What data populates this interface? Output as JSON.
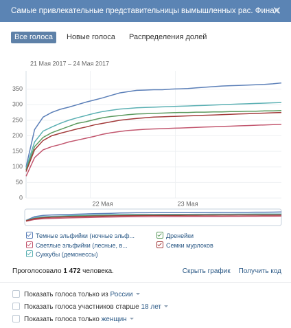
{
  "header": {
    "title": "Самые привлекательные представительницы вымышленных рас. Финал"
  },
  "tabs": [
    "Все голоса",
    "Новые голоса",
    "Распределения долей"
  ],
  "chart_data": {
    "type": "line",
    "subtitle": "21 Мая 2017 – 24 Мая 2017",
    "categories": [
      null,
      null,
      null,
      null,
      null,
      null,
      null,
      null,
      null,
      "22 Мая",
      null,
      null,
      null,
      null,
      null,
      null,
      null,
      null,
      null,
      "23 Мая",
      null,
      null,
      null,
      null,
      null,
      null,
      null,
      null,
      null,
      null,
      null
    ],
    "ylim": [
      0,
      400
    ],
    "yticks": [
      0,
      50,
      100,
      150,
      200,
      250,
      300,
      350
    ],
    "grid": true,
    "series": [
      {
        "name": "Темные эльфийки (ночные эльф...",
        "color": "#5b7fb8",
        "values": [
          100,
          220,
          260,
          275,
          285,
          292,
          300,
          308,
          315,
          322,
          330,
          338,
          342,
          346,
          347,
          348,
          348,
          350,
          351,
          352,
          354,
          356,
          358,
          360,
          361,
          362,
          363,
          364,
          365,
          367,
          370
        ]
      },
      {
        "name": "Светлые эльфийки (лесные, в...",
        "color": "#c2566e",
        "values": [
          70,
          130,
          155,
          165,
          172,
          180,
          186,
          192,
          198,
          205,
          210,
          214,
          217,
          219,
          221,
          222,
          223,
          224,
          225,
          226,
          227,
          228,
          229,
          230,
          231,
          232,
          233,
          234,
          235,
          236,
          237
        ]
      },
      {
        "name": "Суккубы (демонессы)",
        "color": "#5bb0b3",
        "values": [
          95,
          180,
          215,
          228,
          240,
          250,
          258,
          265,
          272,
          278,
          282,
          286,
          288,
          290,
          291,
          292,
          293,
          294,
          295,
          296,
          297,
          298,
          299,
          300,
          301,
          302,
          303,
          304,
          305,
          306,
          307
        ]
      },
      {
        "name": "Дренейки",
        "color": "#5c9a5e",
        "values": [
          90,
          165,
          195,
          210,
          220,
          230,
          240,
          245,
          252,
          258,
          262,
          265,
          268,
          270,
          271,
          272,
          273,
          274,
          275,
          275,
          276,
          276,
          277,
          277,
          278,
          278,
          279,
          279,
          280,
          280,
          281
        ]
      },
      {
        "name": "Семки мурлоков",
        "color": "#a23a3a",
        "values": [
          85,
          155,
          185,
          200,
          208,
          215,
          222,
          228,
          235,
          240,
          245,
          250,
          253,
          256,
          258,
          260,
          261,
          262,
          263,
          264,
          265,
          266,
          267,
          268,
          269,
          270,
          271,
          272,
          273,
          274,
          275
        ]
      }
    ]
  },
  "voted": {
    "prefix": "Проголосовало",
    "count": "1 472",
    "suffix": "человека."
  },
  "links": [
    "Скрыть график",
    "Получить код"
  ],
  "filters": [
    {
      "text": "Показать голоса только из",
      "option": "России"
    },
    {
      "text": "Показать голоса участников старше",
      "option": "18 лет"
    },
    {
      "text": "Показать голоса только",
      "option": "женщин"
    }
  ]
}
